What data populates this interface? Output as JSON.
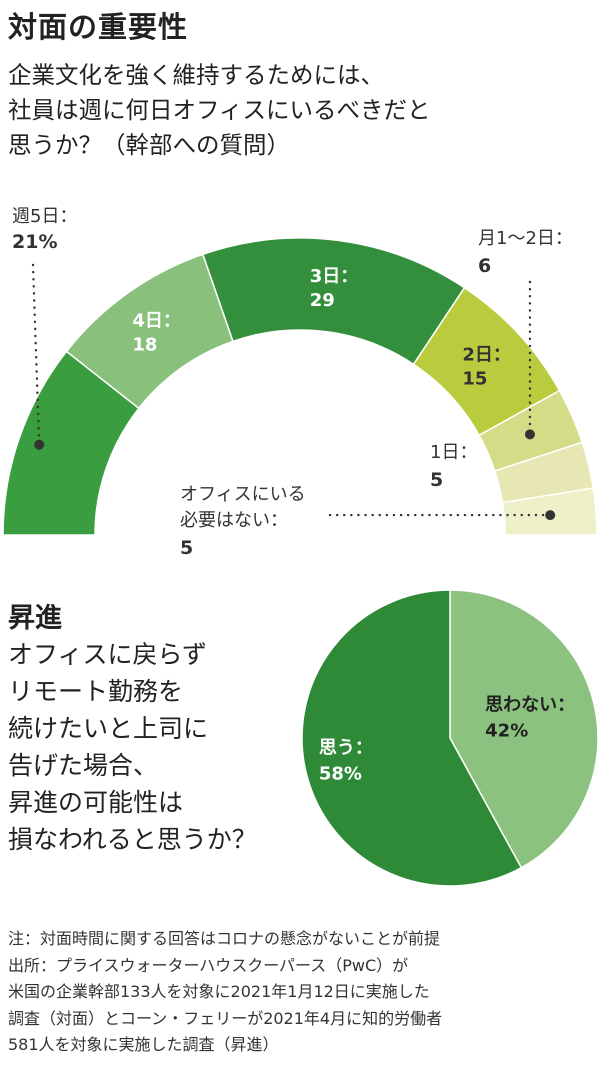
{
  "header": {
    "title": "対面の重要性",
    "question_lines": [
      "企業文化を強く維持するためには、",
      "社員は週に何日オフィスにいるべきだと",
      "思うか？（幹部への質問）"
    ]
  },
  "section2": {
    "title": "昇進",
    "question_lines": [
      "オフィスに戻らず",
      "リモート勤務を",
      "続けたいと上司に",
      "告げた場合、",
      "昇進の可能性は",
      "損なわれると思うか？"
    ]
  },
  "notes": [
    "注：対面時間に関する回答はコロナの懸念がないことが前提",
    "出所：プライスウォーターハウスクーパース（PwC）が",
    "米国の企業幹部133人を対象に2021年1月12日に実施した",
    "調査（対面）とコーン・フェリーが2021年4月に知的労働者",
    "581人を対象に実施した調査（昇進）"
  ],
  "chart_data": [
    {
      "type": "pie",
      "subtype": "semicircle-donut",
      "unit": "%",
      "segments": [
        {
          "name": "週5日：",
          "value": 21,
          "display": "21%",
          "color": "#3a9d3f",
          "label": "outside-left"
        },
        {
          "name": "4日：",
          "value": 18,
          "display": "18",
          "color": "#89c17c",
          "label": "inside"
        },
        {
          "name": "3日：",
          "value": 29,
          "display": "29",
          "color": "#338f3c",
          "label": "inside"
        },
        {
          "name": "2日：",
          "value": 15,
          "display": "15",
          "color": "#b9cc3d",
          "label": "inside"
        },
        {
          "name": "月1～2日：",
          "value": 6,
          "display": "6",
          "color": "#d5dc87",
          "label": "outside-top-right"
        },
        {
          "name": "1日：",
          "value": 5,
          "display": "5",
          "color": "#e6e7b2",
          "label": "outside-right"
        },
        {
          "name_lines": [
            "オフィスにいる",
            "必要はない："
          ],
          "value": 5,
          "display": "5",
          "color": "#eef0c8",
          "label": "outside-bottom"
        }
      ]
    },
    {
      "type": "pie",
      "unit": "%",
      "slices": [
        {
          "name": "思わない：",
          "value": 42,
          "display": "42%",
          "color": "#8bc27f"
        },
        {
          "name": "思う：",
          "value": 58,
          "display": "58%",
          "color": "#2f8a38"
        }
      ]
    }
  ]
}
